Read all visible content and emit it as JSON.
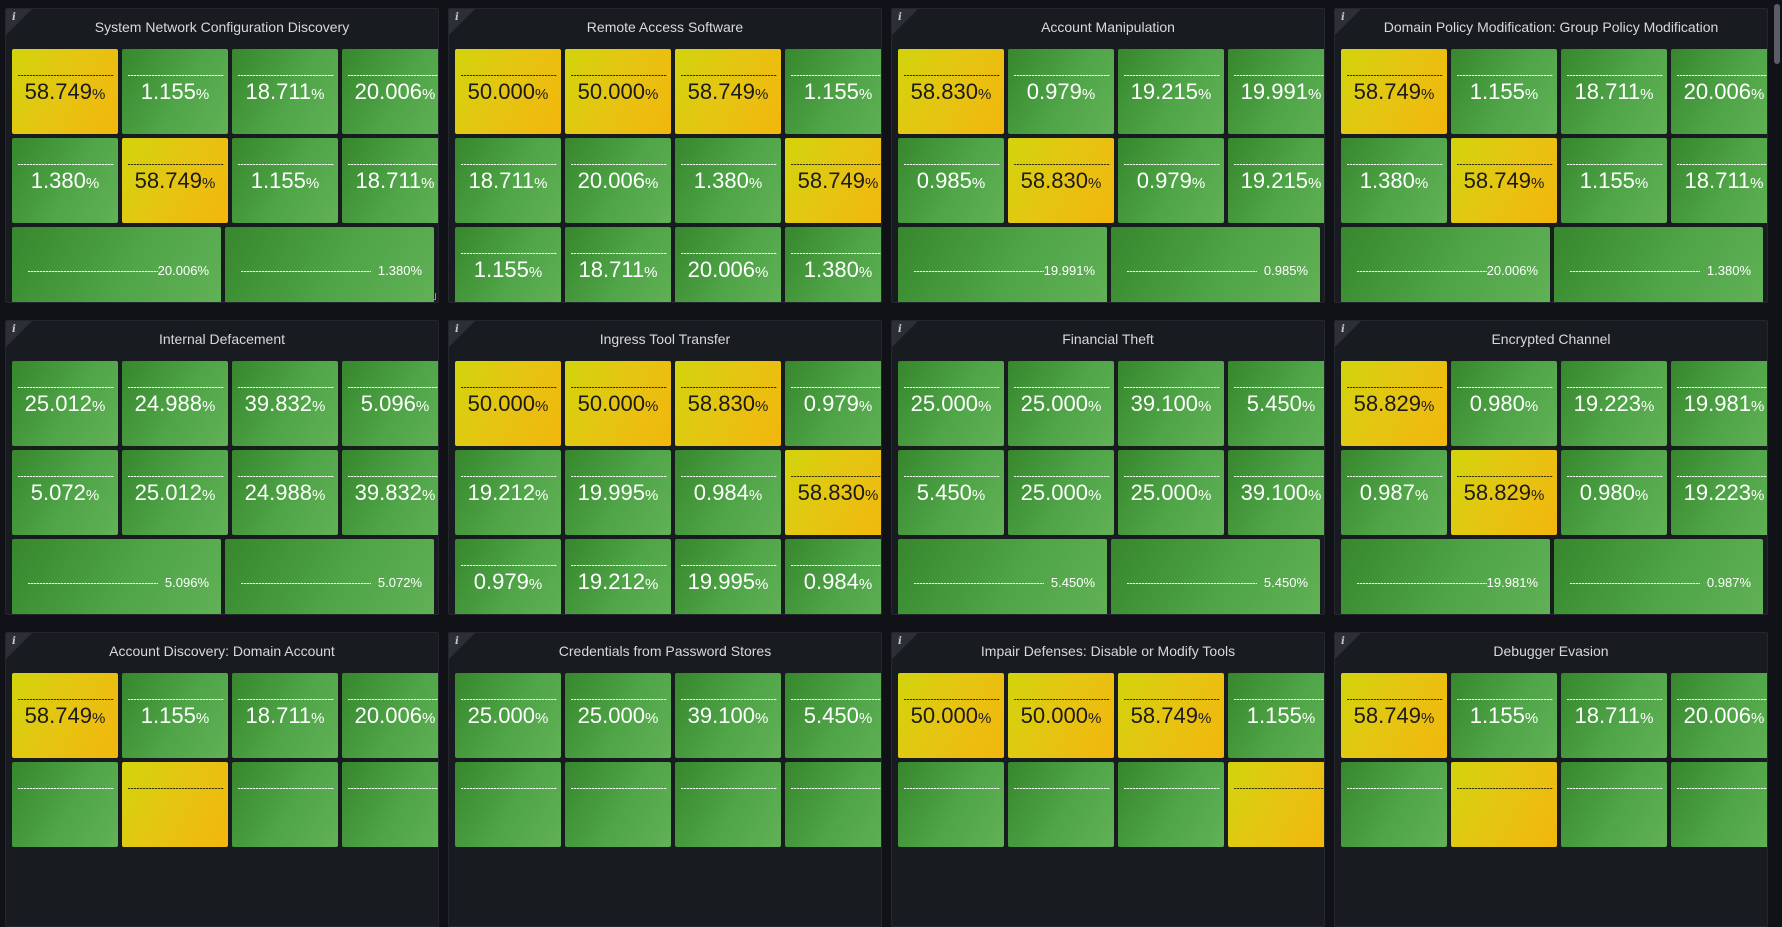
{
  "panels": [
    {
      "title": "System Network Configuration Discovery",
      "rows": [
        [
          {
            "v": "58.749",
            "c": "yellow"
          },
          {
            "v": "1.155",
            "c": "green"
          },
          {
            "v": "18.711",
            "c": "green"
          },
          {
            "v": "20.006",
            "c": "green"
          }
        ],
        [
          {
            "v": "1.380",
            "c": "green"
          },
          {
            "v": "58.749",
            "c": "yellow"
          },
          {
            "v": "1.155",
            "c": "green"
          },
          {
            "v": "18.711",
            "c": "green"
          }
        ],
        [
          {
            "v": "20.006",
            "c": "green"
          },
          {
            "v": "1.380",
            "c": "green"
          }
        ]
      ]
    },
    {
      "title": "Remote Access Software",
      "rows": [
        [
          {
            "v": "50.000",
            "c": "yellow"
          },
          {
            "v": "50.000",
            "c": "yellow"
          },
          {
            "v": "58.749",
            "c": "yellow"
          },
          {
            "v": "1.155",
            "c": "green"
          }
        ],
        [
          {
            "v": "18.711",
            "c": "green"
          },
          {
            "v": "20.006",
            "c": "green"
          },
          {
            "v": "1.380",
            "c": "green"
          },
          {
            "v": "58.749",
            "c": "yellow"
          }
        ],
        [
          {
            "v": "1.155",
            "c": "green"
          },
          {
            "v": "18.711",
            "c": "green"
          },
          {
            "v": "20.006",
            "c": "green"
          },
          {
            "v": "1.380",
            "c": "green"
          }
        ]
      ]
    },
    {
      "title": "Account Manipulation",
      "rows": [
        [
          {
            "v": "58.830",
            "c": "yellow"
          },
          {
            "v": "0.979",
            "c": "green"
          },
          {
            "v": "19.215",
            "c": "green"
          },
          {
            "v": "19.991",
            "c": "green"
          }
        ],
        [
          {
            "v": "0.985",
            "c": "green"
          },
          {
            "v": "58.830",
            "c": "yellow"
          },
          {
            "v": "0.979",
            "c": "green"
          },
          {
            "v": "19.215",
            "c": "green"
          }
        ],
        [
          {
            "v": "19.991",
            "c": "green"
          },
          {
            "v": "0.985",
            "c": "green"
          }
        ]
      ]
    },
    {
      "title": "Domain Policy Modification: Group Policy Modification",
      "rows": [
        [
          {
            "v": "58.749",
            "c": "yellow"
          },
          {
            "v": "1.155",
            "c": "green"
          },
          {
            "v": "18.711",
            "c": "green"
          },
          {
            "v": "20.006",
            "c": "green"
          }
        ],
        [
          {
            "v": "1.380",
            "c": "green"
          },
          {
            "v": "58.749",
            "c": "yellow"
          },
          {
            "v": "1.155",
            "c": "green"
          },
          {
            "v": "18.711",
            "c": "green"
          }
        ],
        [
          {
            "v": "20.006",
            "c": "green"
          },
          {
            "v": "1.380",
            "c": "green"
          }
        ]
      ]
    },
    {
      "title": "Internal Defacement",
      "rows": [
        [
          {
            "v": "25.012",
            "c": "green"
          },
          {
            "v": "24.988",
            "c": "green"
          },
          {
            "v": "39.832",
            "c": "green"
          },
          {
            "v": "5.096",
            "c": "green"
          }
        ],
        [
          {
            "v": "5.072",
            "c": "green"
          },
          {
            "v": "25.012",
            "c": "green"
          },
          {
            "v": "24.988",
            "c": "green"
          },
          {
            "v": "39.832",
            "c": "green"
          }
        ],
        [
          {
            "v": "5.096",
            "c": "green"
          },
          {
            "v": "5.072",
            "c": "green"
          }
        ]
      ]
    },
    {
      "title": "Ingress Tool Transfer",
      "rows": [
        [
          {
            "v": "50.000",
            "c": "yellow"
          },
          {
            "v": "50.000",
            "c": "yellow"
          },
          {
            "v": "58.830",
            "c": "yellow"
          },
          {
            "v": "0.979",
            "c": "green"
          }
        ],
        [
          {
            "v": "19.212",
            "c": "green"
          },
          {
            "v": "19.995",
            "c": "green"
          },
          {
            "v": "0.984",
            "c": "green"
          },
          {
            "v": "58.830",
            "c": "yellow"
          }
        ],
        [
          {
            "v": "0.979",
            "c": "green"
          },
          {
            "v": "19.212",
            "c": "green"
          },
          {
            "v": "19.995",
            "c": "green"
          },
          {
            "v": "0.984",
            "c": "green"
          }
        ]
      ]
    },
    {
      "title": "Financial Theft",
      "rows": [
        [
          {
            "v": "25.000",
            "c": "green"
          },
          {
            "v": "25.000",
            "c": "green"
          },
          {
            "v": "39.100",
            "c": "green"
          },
          {
            "v": "5.450",
            "c": "green"
          }
        ],
        [
          {
            "v": "5.450",
            "c": "green"
          },
          {
            "v": "25.000",
            "c": "green"
          },
          {
            "v": "25.000",
            "c": "green"
          },
          {
            "v": "39.100",
            "c": "green"
          }
        ],
        [
          {
            "v": "5.450",
            "c": "green"
          },
          {
            "v": "5.450",
            "c": "green"
          }
        ]
      ]
    },
    {
      "title": "Encrypted Channel",
      "rows": [
        [
          {
            "v": "58.829",
            "c": "yellow"
          },
          {
            "v": "0.980",
            "c": "green"
          },
          {
            "v": "19.223",
            "c": "green"
          },
          {
            "v": "19.981",
            "c": "green"
          }
        ],
        [
          {
            "v": "0.987",
            "c": "green"
          },
          {
            "v": "58.829",
            "c": "yellow"
          },
          {
            "v": "0.980",
            "c": "green"
          },
          {
            "v": "19.223",
            "c": "green"
          }
        ],
        [
          {
            "v": "19.981",
            "c": "green"
          },
          {
            "v": "0.987",
            "c": "green"
          }
        ]
      ]
    },
    {
      "title": "Account Discovery: Domain Account",
      "rows": [
        [
          {
            "v": "58.749",
            "c": "yellow"
          },
          {
            "v": "1.155",
            "c": "green"
          },
          {
            "v": "18.711",
            "c": "green"
          },
          {
            "v": "20.006",
            "c": "green"
          }
        ],
        [
          {
            "v": "",
            "c": "green"
          },
          {
            "v": "",
            "c": "yellow"
          },
          {
            "v": "",
            "c": "green"
          },
          {
            "v": "",
            "c": "green"
          }
        ]
      ]
    },
    {
      "title": "Credentials from Password Stores",
      "rows": [
        [
          {
            "v": "25.000",
            "c": "green"
          },
          {
            "v": "25.000",
            "c": "green"
          },
          {
            "v": "39.100",
            "c": "green"
          },
          {
            "v": "5.450",
            "c": "green"
          }
        ],
        [
          {
            "v": "",
            "c": "green"
          },
          {
            "v": "",
            "c": "green"
          },
          {
            "v": "",
            "c": "green"
          },
          {
            "v": "",
            "c": "green"
          }
        ]
      ]
    },
    {
      "title": "Impair Defenses: Disable or Modify Tools",
      "rows": [
        [
          {
            "v": "50.000",
            "c": "yellow"
          },
          {
            "v": "50.000",
            "c": "yellow"
          },
          {
            "v": "58.749",
            "c": "yellow"
          },
          {
            "v": "1.155",
            "c": "green"
          }
        ],
        [
          {
            "v": "",
            "c": "green"
          },
          {
            "v": "",
            "c": "green"
          },
          {
            "v": "",
            "c": "green"
          },
          {
            "v": "",
            "c": "yellow"
          }
        ]
      ]
    },
    {
      "title": "Debugger Evasion",
      "rows": [
        [
          {
            "v": "58.749",
            "c": "yellow"
          },
          {
            "v": "1.155",
            "c": "green"
          },
          {
            "v": "18.711",
            "c": "green"
          },
          {
            "v": "20.006",
            "c": "green"
          }
        ],
        [
          {
            "v": "",
            "c": "green"
          },
          {
            "v": "",
            "c": "yellow"
          },
          {
            "v": "",
            "c": "green"
          },
          {
            "v": "",
            "c": "green"
          }
        ]
      ]
    }
  ],
  "unit": "%",
  "info_glyph": "i",
  "colors": {
    "green": "#4fa547",
    "yellow": "#e6c412",
    "panel_bg": "#181b1f",
    "page_bg": "#111217"
  }
}
